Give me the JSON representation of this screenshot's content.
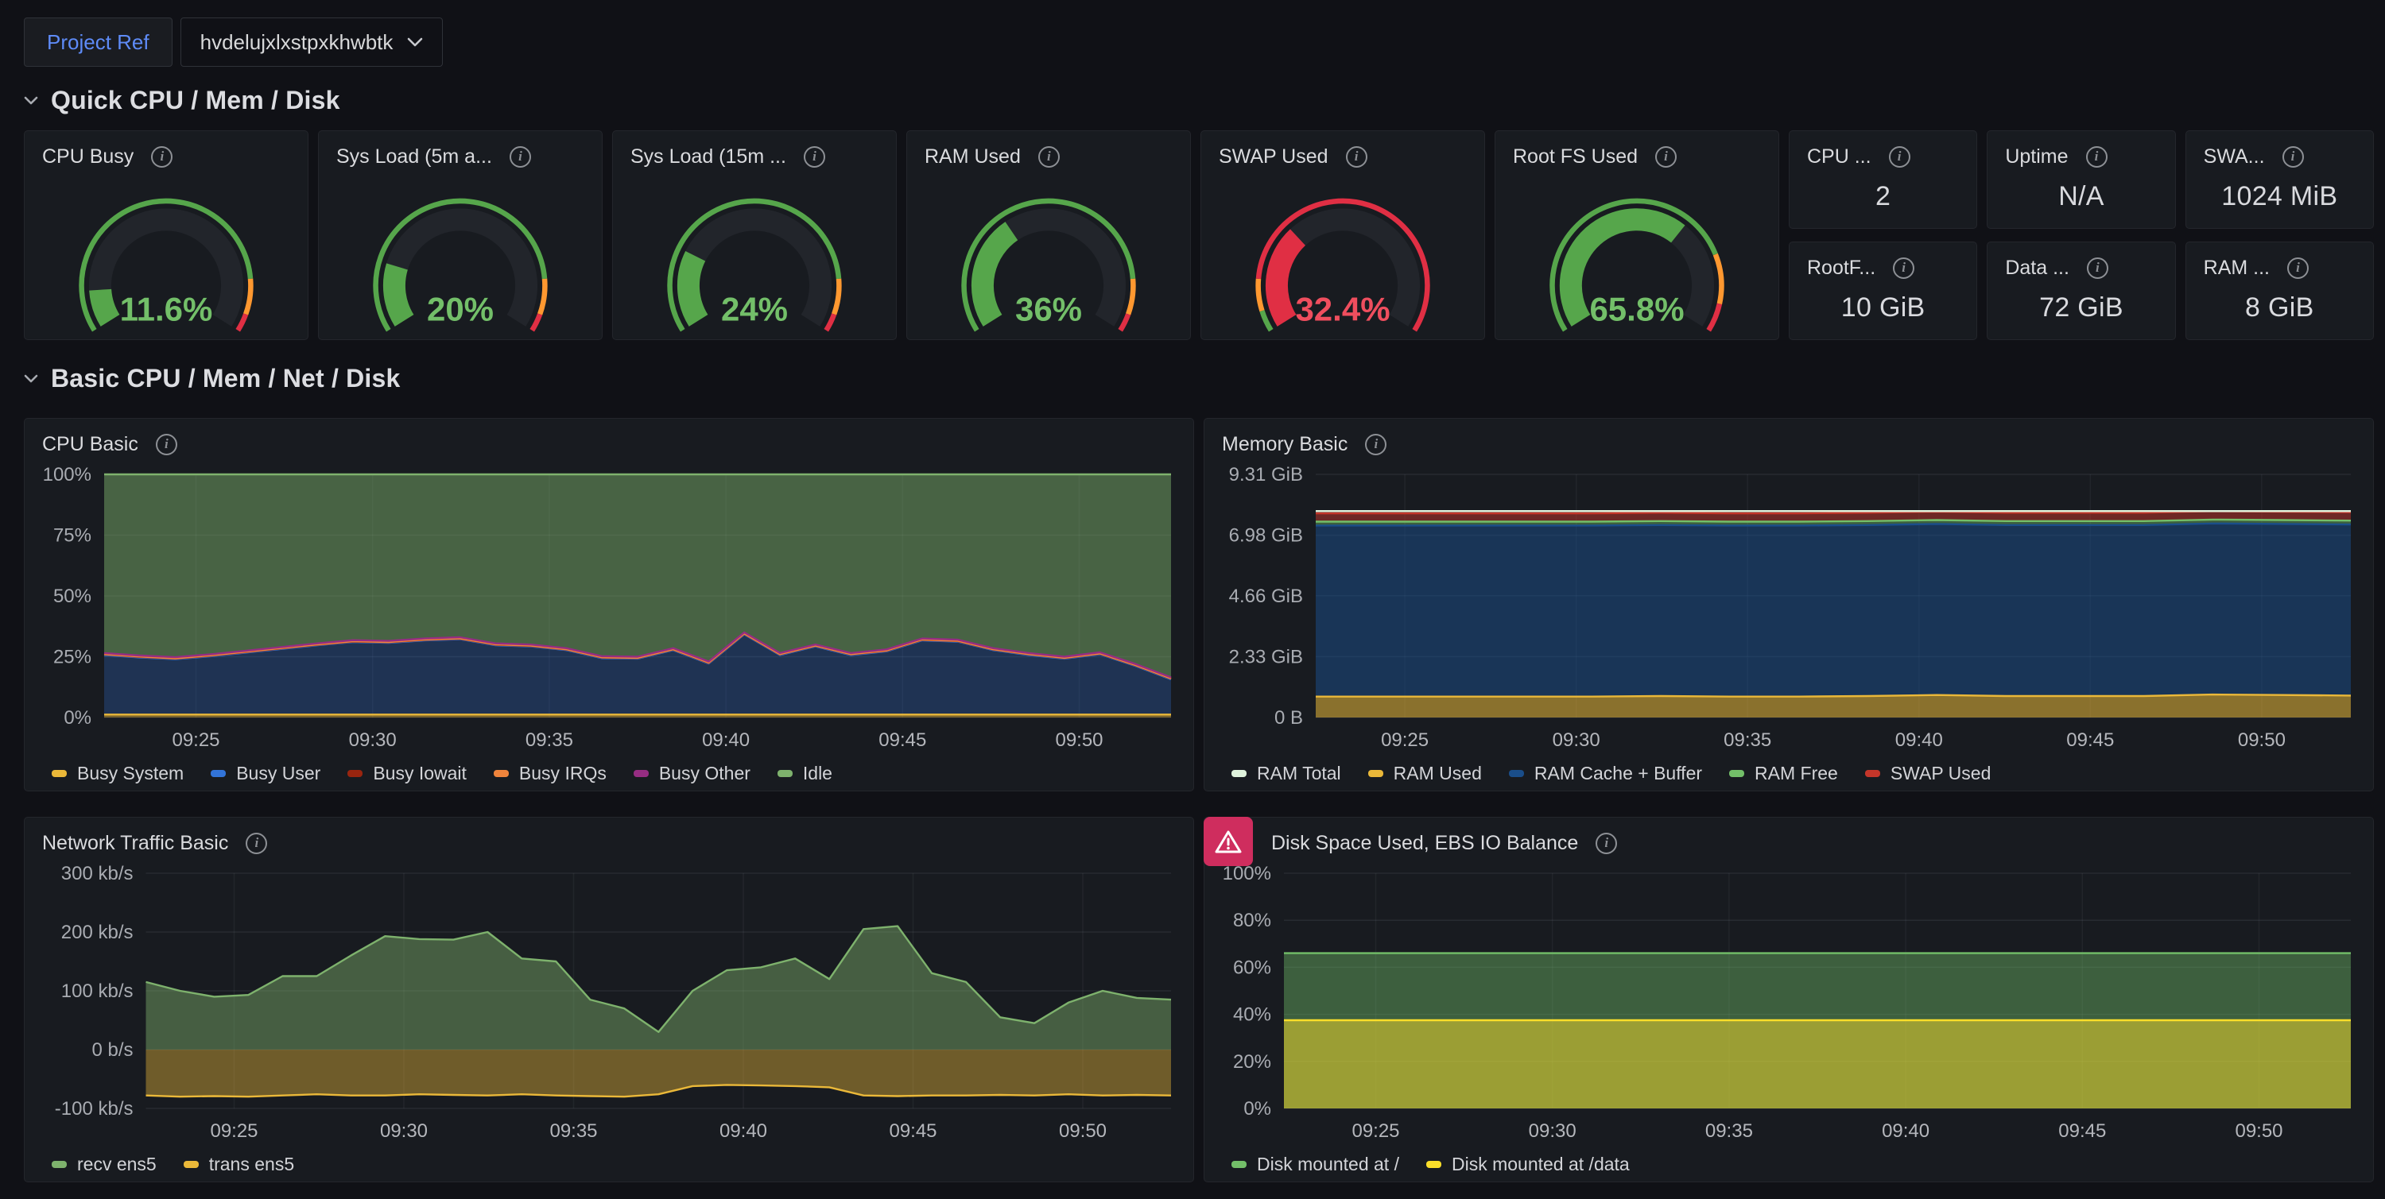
{
  "variable_bar": {
    "label": "Project Ref",
    "value": "hvdelujxlxstpxkhwbtk"
  },
  "sections": [
    {
      "title": "Quick CPU / Mem / Disk"
    },
    {
      "title": "Basic CPU / Mem / Net / Disk"
    }
  ],
  "colors": {
    "page_bg": "#101116",
    "panel_bg": "#181b20",
    "panel_border": "#24262c",
    "accent_blue": "#5e8bf7",
    "alert_badge": "#cf2d5e",
    "green": "#73bf69",
    "orange": "#ff9830",
    "red": "#e02f44",
    "gauge_track": "#22252b"
  },
  "gauges": [
    {
      "title": "CPU Busy",
      "display": "11.6%",
      "value": 11.6,
      "fraction": 0.116,
      "arc_color": "#56a64b",
      "value_color": "#73bf69",
      "thresholds": [
        {
          "color": "#56a64b",
          "to": 0.85
        },
        {
          "color": "#ff9830",
          "to": 0.95
        },
        {
          "color": "#e02f44",
          "to": 1
        }
      ]
    },
    {
      "title": "Sys Load (5m a...",
      "display": "20%",
      "value": 20,
      "fraction": 0.2,
      "arc_color": "#56a64b",
      "value_color": "#73bf69",
      "thresholds": [
        {
          "color": "#56a64b",
          "to": 0.85
        },
        {
          "color": "#ff9830",
          "to": 0.95
        },
        {
          "color": "#e02f44",
          "to": 1
        }
      ]
    },
    {
      "title": "Sys Load (15m ...",
      "display": "24%",
      "value": 24,
      "fraction": 0.24,
      "arc_color": "#56a64b",
      "value_color": "#73bf69",
      "thresholds": [
        {
          "color": "#56a64b",
          "to": 0.85
        },
        {
          "color": "#ff9830",
          "to": 0.95
        },
        {
          "color": "#e02f44",
          "to": 1
        }
      ]
    },
    {
      "title": "RAM Used",
      "display": "36%",
      "value": 36,
      "fraction": 0.36,
      "arc_color": "#56a64b",
      "value_color": "#73bf69",
      "thresholds": [
        {
          "color": "#56a64b",
          "to": 0.85
        },
        {
          "color": "#ff9830",
          "to": 0.95
        },
        {
          "color": "#e02f44",
          "to": 1
        }
      ]
    },
    {
      "title": "SWAP Used",
      "display": "32.4%",
      "value": 32.4,
      "fraction": 0.324,
      "arc_color": "#e02f44",
      "value_color": "#ef4e5e",
      "thresholds": [
        {
          "color": "#56a64b",
          "to": 0.06
        },
        {
          "color": "#ff9830",
          "to": 0.15
        },
        {
          "color": "#e02f44",
          "to": 1
        }
      ]
    },
    {
      "title": "Root FS Used",
      "display": "65.8%",
      "value": 65.8,
      "fraction": 0.658,
      "arc_color": "#56a64b",
      "value_color": "#73bf69",
      "thresholds": [
        {
          "color": "#56a64b",
          "to": 0.78
        },
        {
          "color": "#ff9830",
          "to": 0.92
        },
        {
          "color": "#e02f44",
          "to": 1
        }
      ]
    }
  ],
  "stats": [
    {
      "title": "CPU ...",
      "value": "2"
    },
    {
      "title": "Uptime",
      "value": "N/A"
    },
    {
      "title": "SWA...",
      "value": "1024 MiB"
    },
    {
      "title": "RootF...",
      "value": "10 GiB"
    },
    {
      "title": "Data ...",
      "value": "72 GiB"
    },
    {
      "title": "RAM ...",
      "value": "8 GiB"
    }
  ],
  "chart_data": {
    "cpu": {
      "title": "CPU Basic",
      "type": "area",
      "stacked": true,
      "x_domain": [
        22.4,
        52.6
      ],
      "x_ticks": [
        {
          "v": 25,
          "label": "09:25"
        },
        {
          "v": 30,
          "label": "09:30"
        },
        {
          "v": 35,
          "label": "09:35"
        },
        {
          "v": 40,
          "label": "09:40"
        },
        {
          "v": 45,
          "label": "09:45"
        },
        {
          "v": 50,
          "label": "09:50"
        }
      ],
      "y": {
        "min": 0,
        "max": 100,
        "ticks": [
          {
            "v": 0,
            "label": "0%"
          },
          {
            "v": 25,
            "label": "25%"
          },
          {
            "v": 50,
            "label": "50%"
          },
          {
            "v": 75,
            "label": "75%"
          },
          {
            "v": 100,
            "label": "100%"
          }
        ]
      },
      "series": [
        {
          "name": "Busy System",
          "color": "#eab839",
          "fill_opacity": 0.45,
          "values": 1.2
        },
        {
          "name": "Busy User",
          "color": "#3274d9",
          "fill_opacity": 0.28,
          "values": [
            24.5,
            23.5,
            22.8,
            24,
            25.5,
            27,
            28.5,
            29.8,
            29.5,
            30.5,
            31,
            28.5,
            28,
            26.5,
            23.2,
            23,
            26.5,
            21,
            33,
            24.5,
            28,
            24.5,
            26,
            30.5,
            30,
            26.5,
            24.5,
            23,
            24.8,
            20,
            14.5
          ]
        },
        {
          "name": "Busy Iowait",
          "color": "#99250f",
          "fill_opacity": 0.5,
          "values": 0.2
        },
        {
          "name": "Busy IRQs",
          "color": "#ef843c",
          "fill_opacity": 0.5,
          "values": 0.15
        },
        {
          "name": "Busy Other",
          "color": "#962d82",
          "fill_opacity": 0.5,
          "values": 0.45
        },
        {
          "name": "Idle",
          "color": "#7eb26d",
          "fill_opacity": 0.48,
          "values": [
            73.5,
            74.5,
            75.2,
            74,
            72.5,
            71,
            69.5,
            68.2,
            68.5,
            67.5,
            67,
            69.5,
            70,
            71.5,
            74.8,
            75,
            71.5,
            77,
            65,
            73.5,
            70,
            73.5,
            72,
            67.5,
            68,
            71.5,
            73.5,
            75,
            73.2,
            78,
            83.5
          ]
        }
      ]
    },
    "memory": {
      "title": "Memory Basic",
      "type": "area",
      "stacked": true,
      "x_domain": [
        22.4,
        52.6
      ],
      "x_ticks": [
        {
          "v": 25,
          "label": "09:25"
        },
        {
          "v": 30,
          "label": "09:30"
        },
        {
          "v": 35,
          "label": "09:35"
        },
        {
          "v": 40,
          "label": "09:40"
        },
        {
          "v": 45,
          "label": "09:45"
        },
        {
          "v": 50,
          "label": "09:50"
        }
      ],
      "y": {
        "min": 0,
        "max": 9.31,
        "ticks": [
          {
            "v": 0,
            "label": "0 B"
          },
          {
            "v": 2.33,
            "label": "2.33 GiB"
          },
          {
            "v": 4.66,
            "label": "4.66 GiB"
          },
          {
            "v": 6.98,
            "label": "6.98 GiB"
          },
          {
            "v": 9.31,
            "label": "9.31 GiB"
          }
        ]
      },
      "series": [
        {
          "name": "RAM Total",
          "color": "#dff2dc",
          "mode": "line",
          "values": 7.9
        },
        {
          "name": "RAM Used",
          "color": "#eab839",
          "fill_opacity": 0.55,
          "values": [
            0.8,
            0.8,
            0.8,
            0.8,
            0.8,
            0.82,
            0.8,
            0.8,
            0.82,
            0.86,
            0.82,
            0.82,
            0.82,
            0.88,
            0.86,
            0.84
          ]
        },
        {
          "name": "RAM Cache + Buffer",
          "color": "#1a4e8a",
          "fill_opacity": 0.52,
          "values": 6.55
        },
        {
          "name": "RAM Free",
          "color": "#73bf69",
          "fill_opacity": 0.42,
          "values": 0.15
        },
        {
          "name": "SWAP Used",
          "color": "#c4362a",
          "fill_opacity": 0.5,
          "values": 0.32
        }
      ]
    },
    "network": {
      "title": "Network Traffic Basic",
      "type": "area",
      "stacked": false,
      "x_domain": [
        22.4,
        52.6
      ],
      "x_ticks": [
        {
          "v": 25,
          "label": "09:25"
        },
        {
          "v": 30,
          "label": "09:30"
        },
        {
          "v": 35,
          "label": "09:35"
        },
        {
          "v": 40,
          "label": "09:40"
        },
        {
          "v": 45,
          "label": "09:45"
        },
        {
          "v": 50,
          "label": "09:50"
        }
      ],
      "y": {
        "min": -100,
        "max": 300,
        "ticks": [
          {
            "v": -100,
            "label": "-100 kb/s"
          },
          {
            "v": 0,
            "label": "0 b/s"
          },
          {
            "v": 100,
            "label": "100 kb/s"
          },
          {
            "v": 200,
            "label": "200 kb/s"
          },
          {
            "v": 300,
            "label": "300 kb/s"
          }
        ]
      },
      "series": [
        {
          "name": "recv ens5",
          "color": "#7eb26d",
          "fill_opacity": 0.45,
          "values": [
            115,
            100,
            90,
            93,
            125,
            125,
            160,
            193,
            188,
            187,
            200,
            155,
            150,
            85,
            70,
            30,
            100,
            135,
            140,
            155,
            120,
            205,
            210,
            130,
            115,
            55,
            45,
            80,
            100,
            88,
            85
          ]
        },
        {
          "name": "trans ens5",
          "color": "#eab839",
          "fill_opacity": 0.42,
          "values": [
            -78,
            -80,
            -79,
            -80,
            -78,
            -76,
            -78,
            -78,
            -76,
            -77,
            -78,
            -76,
            -78,
            -79,
            -80,
            -76,
            -62,
            -60,
            -61,
            -62,
            -64,
            -78,
            -79,
            -78,
            -78,
            -77,
            -78,
            -76,
            -78,
            -77,
            -78
          ]
        }
      ]
    },
    "disk": {
      "title": "Disk Space Used, EBS IO Balance",
      "type": "area",
      "stacked": false,
      "has_alert": true,
      "x_domain": [
        22.4,
        52.6
      ],
      "x_ticks": [
        {
          "v": 25,
          "label": "09:25"
        },
        {
          "v": 30,
          "label": "09:30"
        },
        {
          "v": 35,
          "label": "09:35"
        },
        {
          "v": 40,
          "label": "09:40"
        },
        {
          "v": 45,
          "label": "09:45"
        },
        {
          "v": 50,
          "label": "09:50"
        }
      ],
      "y": {
        "min": 0,
        "max": 100,
        "ticks": [
          {
            "v": 0,
            "label": "0%"
          },
          {
            "v": 20,
            "label": "20%"
          },
          {
            "v": 40,
            "label": "40%"
          },
          {
            "v": 60,
            "label": "60%"
          },
          {
            "v": 80,
            "label": "80%"
          },
          {
            "v": 100,
            "label": "100%"
          }
        ]
      },
      "series": [
        {
          "name": "Disk mounted at /",
          "color": "#73bf69",
          "fill_opacity": 0.42,
          "values": [
            66,
            66
          ]
        },
        {
          "name": "Disk mounted at /data",
          "color": "#fade2a",
          "fill_opacity": 0.5,
          "values": [
            37.5,
            37.5
          ]
        }
      ]
    }
  }
}
